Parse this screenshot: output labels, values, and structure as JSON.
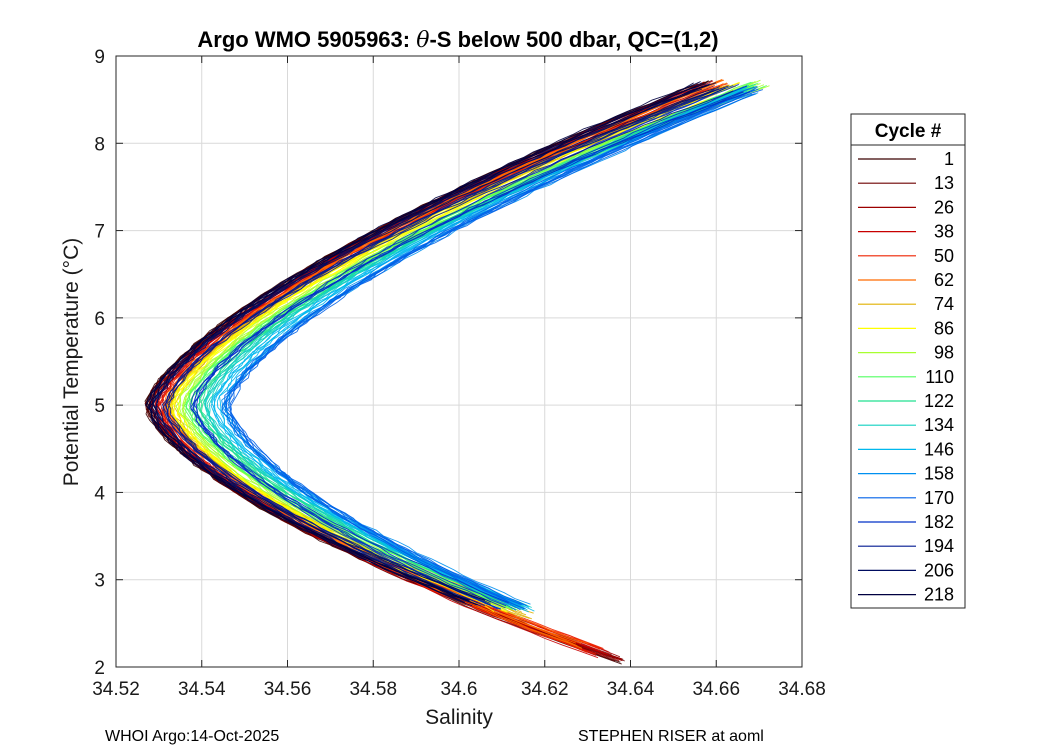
{
  "chart_data": {
    "type": "line",
    "title_prefix": "Argo WMO 5905963: ",
    "title_theta": "θ",
    "title_suffix": "-S below 500 dbar,  QC=(1,2)",
    "xlabel": "Salinity",
    "ylabel": "Potential Temperature (°C)",
    "xlim": [
      34.52,
      34.68
    ],
    "ylim": [
      2,
      9
    ],
    "xticks": [
      "34.52",
      "34.54",
      "34.56",
      "34.58",
      "34.6",
      "34.62",
      "34.64",
      "34.66",
      "34.68"
    ],
    "xtick_values": [
      34.52,
      34.54,
      34.56,
      34.58,
      34.6,
      34.62,
      34.64,
      34.66,
      34.68
    ],
    "yticks": [
      "2",
      "3",
      "4",
      "5",
      "6",
      "7",
      "8",
      "9"
    ],
    "ytick_values": [
      2,
      3,
      4,
      5,
      6,
      7,
      8,
      9
    ],
    "grid": true,
    "legend_title": "Cycle #",
    "legend_position": "right",
    "series": [
      {
        "name": "1",
        "color": "#3a0000",
        "s_min": 34.5275,
        "bottom_s": 34.64,
        "bottom_t": 2.03,
        "top_s": 34.659,
        "top_t": 8.72
      },
      {
        "name": "13",
        "color": "#6e0000",
        "s_min": 34.528,
        "bottom_s": 34.639,
        "bottom_t": 2.05,
        "top_s": 34.66,
        "top_t": 8.7
      },
      {
        "name": "26",
        "color": "#9c0000",
        "s_min": 34.529,
        "bottom_s": 34.638,
        "bottom_t": 2.07,
        "top_s": 34.661,
        "top_t": 8.71
      },
      {
        "name": "38",
        "color": "#c80000",
        "s_min": 34.53,
        "bottom_s": 34.636,
        "bottom_t": 2.1,
        "top_s": 34.662,
        "top_t": 8.72
      },
      {
        "name": "50",
        "color": "#ee2200",
        "s_min": 34.531,
        "bottom_s": 34.634,
        "bottom_t": 2.14,
        "top_s": 34.664,
        "top_t": 8.74
      },
      {
        "name": "62",
        "color": "#ff6a00",
        "s_min": 34.532,
        "bottom_s": 34.631,
        "bottom_t": 2.2,
        "top_s": 34.665,
        "top_t": 8.75
      },
      {
        "name": "74",
        "color": "#e0b000",
        "s_min": 34.533,
        "bottom_s": 34.618,
        "bottom_t": 2.55,
        "top_s": 34.666,
        "top_t": 8.72
      },
      {
        "name": "86",
        "color": "#ffff00",
        "s_min": 34.5335,
        "bottom_s": 34.612,
        "bottom_t": 2.62,
        "top_s": 34.668,
        "top_t": 8.7
      },
      {
        "name": "98",
        "color": "#a8ff30",
        "s_min": 34.535,
        "bottom_s": 34.614,
        "bottom_t": 2.63,
        "top_s": 34.673,
        "top_t": 8.74
      },
      {
        "name": "110",
        "color": "#50ff60",
        "s_min": 34.537,
        "bottom_s": 34.615,
        "bottom_t": 2.64,
        "top_s": 34.672,
        "top_t": 8.72
      },
      {
        "name": "122",
        "color": "#20e090",
        "s_min": 34.539,
        "bottom_s": 34.616,
        "bottom_t": 2.65,
        "top_s": 34.671,
        "top_t": 8.7
      },
      {
        "name": "134",
        "color": "#10d0c0",
        "s_min": 34.541,
        "bottom_s": 34.617,
        "bottom_t": 2.64,
        "top_s": 34.67,
        "top_t": 8.68
      },
      {
        "name": "146",
        "color": "#00b8ee",
        "s_min": 34.543,
        "bottom_s": 34.618,
        "bottom_t": 2.63,
        "top_s": 34.669,
        "top_t": 8.66
      },
      {
        "name": "158",
        "color": "#0090f0",
        "s_min": 34.545,
        "bottom_s": 34.617,
        "bottom_t": 2.64,
        "top_s": 34.67,
        "top_t": 8.65
      },
      {
        "name": "170",
        "color": "#0060e8",
        "s_min": 34.546,
        "bottom_s": 34.616,
        "bottom_t": 2.65,
        "top_s": 34.672,
        "top_t": 8.66
      },
      {
        "name": "182",
        "color": "#0030c8",
        "s_min": 34.538,
        "bottom_s": 34.612,
        "bottom_t": 2.66,
        "top_s": 34.668,
        "top_t": 8.68
      },
      {
        "name": "194",
        "color": "#001890",
        "s_min": 34.532,
        "bottom_s": 34.608,
        "bottom_t": 2.68,
        "top_s": 34.664,
        "top_t": 8.69
      },
      {
        "name": "206",
        "color": "#000c60",
        "s_min": 34.529,
        "bottom_s": 34.606,
        "bottom_t": 2.7,
        "top_s": 34.66,
        "top_t": 8.7
      },
      {
        "name": "218",
        "color": "#000040",
        "s_min": 34.528,
        "bottom_s": 34.604,
        "bottom_t": 2.71,
        "top_s": 34.658,
        "top_t": 8.72
      }
    ]
  },
  "footer": {
    "left": "WHOI Argo:14-Oct-2025",
    "right": "STEPHEN RISER at aoml"
  }
}
